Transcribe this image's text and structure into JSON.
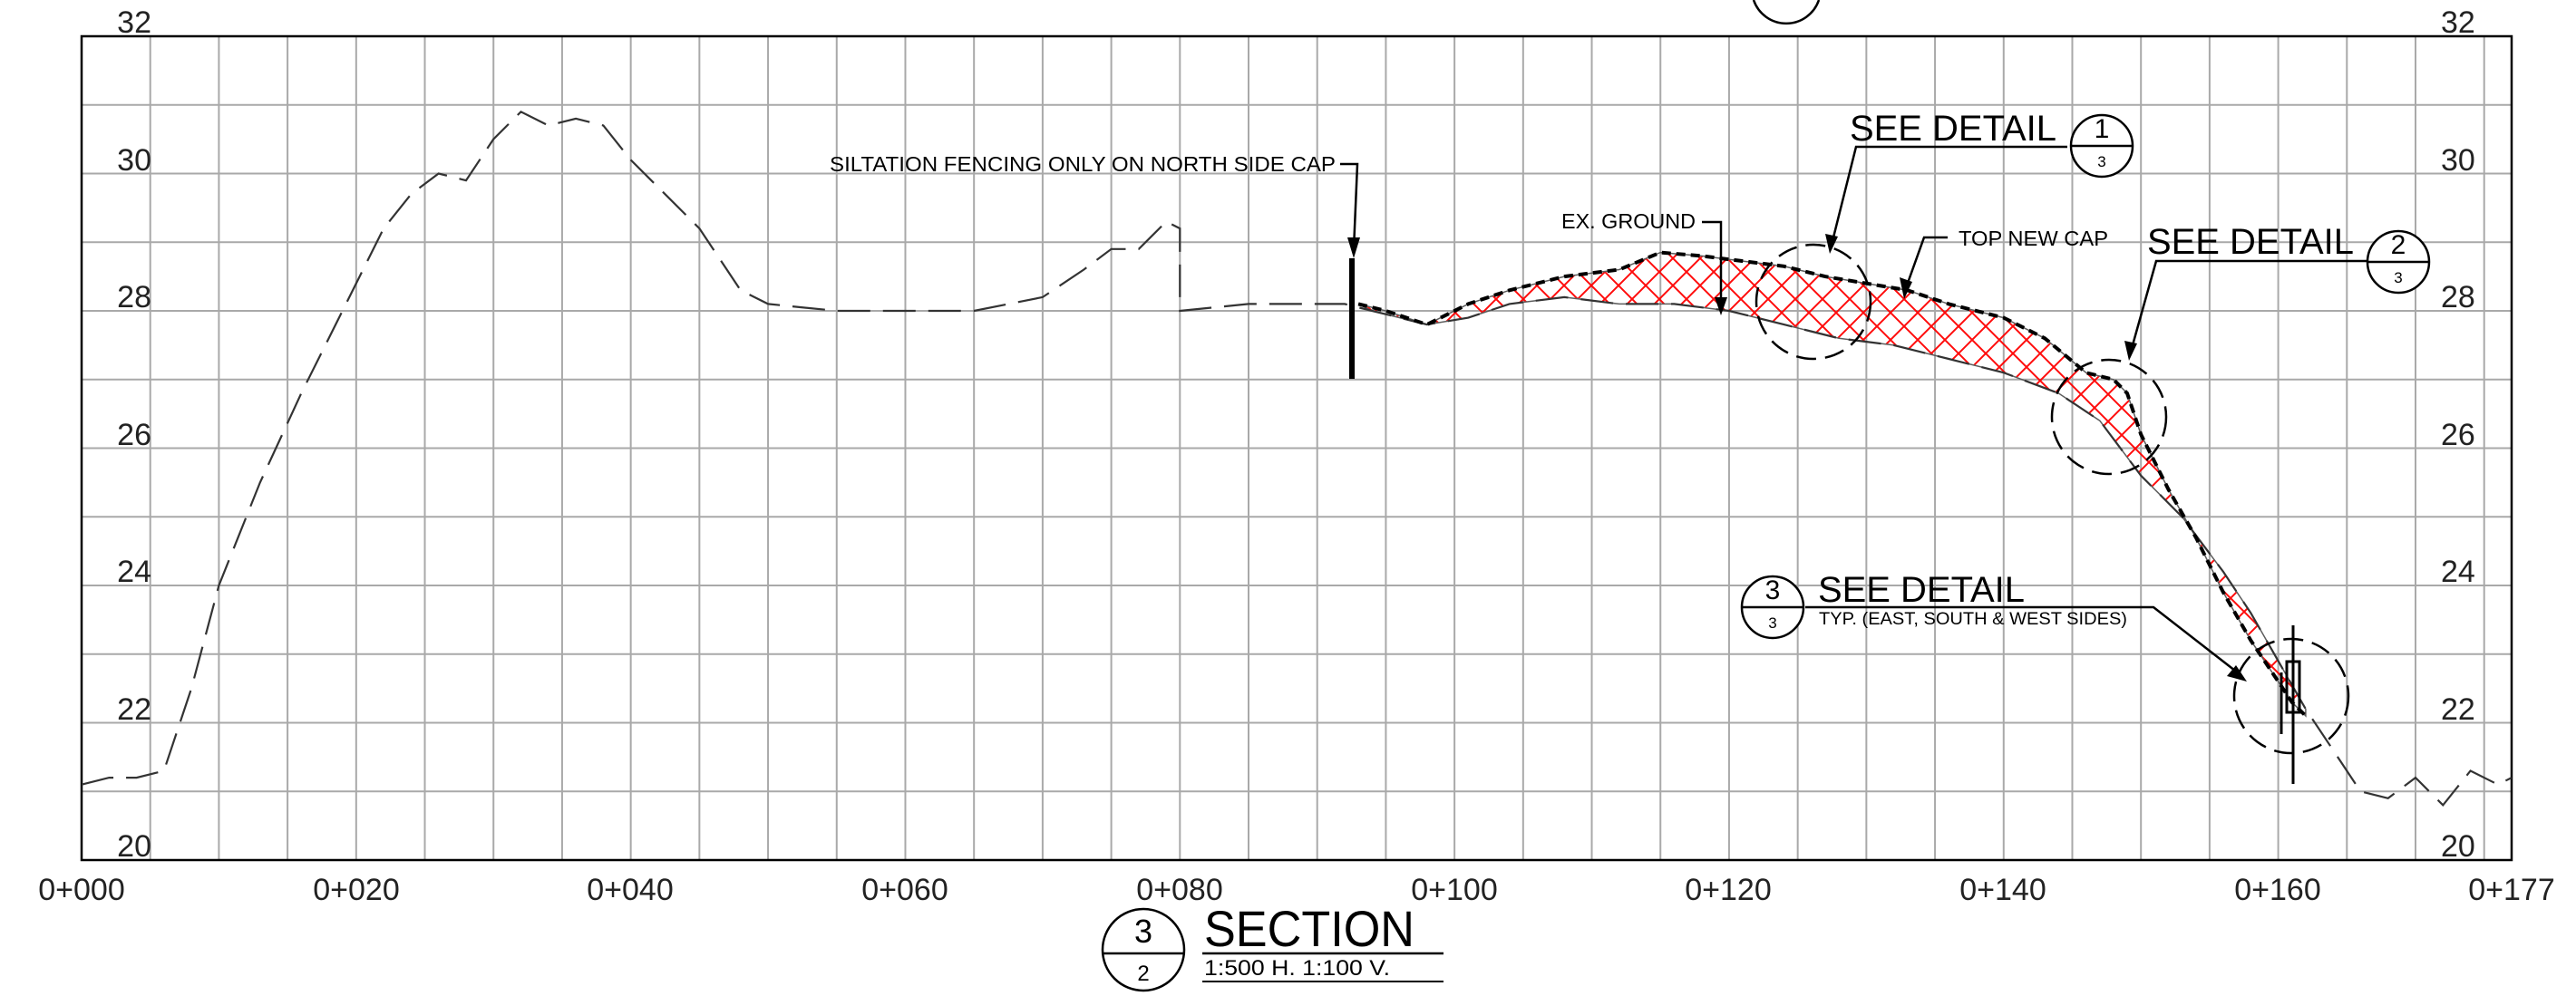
{
  "section": {
    "number": "3",
    "sheet": "2",
    "title": "SECTION",
    "scale": "1:500 H. 1:100 V."
  },
  "axes": {
    "elevations_left": [
      "32",
      "30",
      "28",
      "26",
      "24",
      "22",
      "20"
    ],
    "elevations_right": [
      "32",
      "30",
      "28",
      "26",
      "24",
      "22",
      "20"
    ],
    "stations": [
      "0+000",
      "0+020",
      "0+040",
      "0+060",
      "0+080",
      "0+100",
      "0+120",
      "0+140",
      "0+160",
      "0+177"
    ],
    "x_range": [
      0,
      177
    ],
    "y_range": [
      20,
      32
    ]
  },
  "annotations": {
    "siltation": "SILTATION FENCING ONLY ON NORTH SIDE CAP",
    "ex_ground": "EX. GROUND",
    "top_new_cap": "TOP NEW CAP"
  },
  "details": [
    {
      "title": "SEE DETAIL",
      "number": "1",
      "sheet": "3",
      "subtitle": ""
    },
    {
      "title": "SEE DETAIL",
      "number": "2",
      "sheet": "3",
      "subtitle": ""
    },
    {
      "title": "SEE DETAIL",
      "number": "3",
      "sheet": "3",
      "subtitle": "TYP. (EAST, SOUTH & WEST SIDES)"
    }
  ],
  "profiles": {
    "existing_ground": [
      [
        0,
        21.1
      ],
      [
        2,
        21.2
      ],
      [
        4,
        21.2
      ],
      [
        6,
        21.3
      ],
      [
        8,
        22.5
      ],
      [
        10,
        24.0
      ],
      [
        13,
        25.5
      ],
      [
        16,
        26.8
      ],
      [
        19,
        28.0
      ],
      [
        22,
        29.2
      ],
      [
        24,
        29.7
      ],
      [
        26,
        30.0
      ],
      [
        28,
        29.9
      ],
      [
        30,
        30.5
      ],
      [
        32,
        30.9
      ],
      [
        34,
        30.7
      ],
      [
        36,
        30.8
      ],
      [
        38,
        30.7
      ],
      [
        40,
        30.2
      ],
      [
        45,
        29.2
      ],
      [
        48,
        28.3
      ],
      [
        50,
        28.1
      ],
      [
        55,
        28.0
      ],
      [
        60,
        28.0
      ],
      [
        65,
        28.0
      ],
      [
        70,
        28.2
      ],
      [
        73,
        28.6
      ],
      [
        75,
        28.9
      ],
      [
        77,
        28.9
      ],
      [
        79,
        29.3
      ],
      [
        80,
        29.2
      ],
      [
        80,
        28.0
      ],
      [
        85,
        28.1
      ],
      [
        92,
        28.1
      ],
      [
        94,
        28.0
      ],
      [
        98,
        27.8
      ],
      [
        101,
        27.9
      ],
      [
        104,
        28.1
      ],
      [
        108,
        28.2
      ],
      [
        112,
        28.1
      ],
      [
        116,
        28.1
      ],
      [
        120,
        28.0
      ],
      [
        124,
        27.8
      ],
      [
        128,
        27.6
      ],
      [
        132,
        27.5
      ],
      [
        136,
        27.3
      ],
      [
        140,
        27.1
      ],
      [
        144,
        26.8
      ],
      [
        147,
        26.4
      ],
      [
        150,
        25.6
      ],
      [
        153,
        25.0
      ],
      [
        156,
        24.2
      ],
      [
        158,
        23.6
      ],
      [
        160,
        22.9
      ],
      [
        162,
        22.2
      ],
      [
        164,
        21.6
      ],
      [
        166,
        21.0
      ],
      [
        168,
        20.9
      ],
      [
        170,
        21.2
      ],
      [
        172,
        20.8
      ],
      [
        174,
        21.3
      ],
      [
        176,
        21.1
      ],
      [
        177,
        21.2
      ]
    ],
    "top_new_cap": [
      [
        93,
        28.1
      ],
      [
        95,
        28.0
      ],
      [
        98,
        27.8
      ],
      [
        101,
        28.1
      ],
      [
        104,
        28.3
      ],
      [
        108,
        28.5
      ],
      [
        112,
        28.6
      ],
      [
        115,
        28.85
      ],
      [
        118,
        28.8
      ],
      [
        120,
        28.75
      ],
      [
        124,
        28.65
      ],
      [
        127,
        28.5
      ],
      [
        130,
        28.4
      ],
      [
        133,
        28.3
      ],
      [
        136,
        28.1
      ],
      [
        140,
        27.9
      ],
      [
        143,
        27.6
      ],
      [
        146,
        27.1
      ],
      [
        148,
        27.0
      ],
      [
        149,
        26.8
      ],
      [
        150,
        26.2
      ],
      [
        152,
        25.4
      ],
      [
        154,
        24.7
      ],
      [
        156,
        23.9
      ],
      [
        158,
        23.2
      ],
      [
        160,
        22.6
      ],
      [
        161,
        22.3
      ],
      [
        162,
        22.1
      ]
    ]
  },
  "colors": {
    "cap_fill": "#ff0000",
    "grid": "#a9a9a9",
    "line": "#000000"
  }
}
